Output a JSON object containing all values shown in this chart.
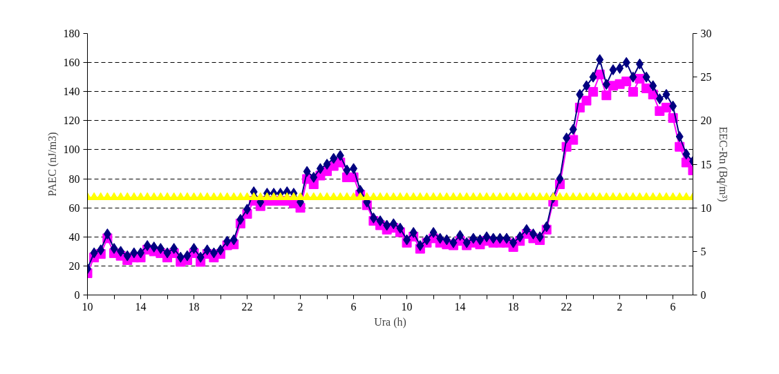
{
  "chart_data": {
    "type": "line",
    "xlabel": "Ura (h)",
    "ylabel": "PAEC (nJ/m3)",
    "y2label": "EEC-Rn (Bq/m³)",
    "categories": [
      "10",
      null,
      null,
      null,
      null,
      null,
      null,
      null,
      "14",
      null,
      null,
      null,
      null,
      null,
      null,
      null,
      "18",
      null,
      null,
      null,
      null,
      null,
      null,
      null,
      "22",
      null,
      null,
      null,
      null,
      null,
      null,
      null,
      "2",
      null,
      null,
      null,
      null,
      null,
      null,
      null,
      "6",
      null,
      null,
      null,
      null,
      null,
      null,
      null,
      "10",
      null,
      null,
      null,
      null,
      null,
      null,
      null,
      "14",
      null,
      null,
      null,
      null,
      null,
      null,
      null,
      "18",
      null,
      null,
      null,
      null,
      null,
      null,
      null,
      "22",
      null,
      null,
      null,
      null,
      null,
      null,
      null,
      "2",
      null,
      null,
      null,
      null,
      null,
      null,
      null,
      "6",
      null,
      null,
      null
    ],
    "ylim": [
      0,
      180
    ],
    "yticks": [
      0,
      20,
      40,
      60,
      80,
      100,
      120,
      140,
      160,
      180
    ],
    "y2lim": [
      0,
      30
    ],
    "y2ticks": [
      0,
      5,
      10,
      15,
      20,
      25,
      30
    ],
    "grid": "y",
    "line_style": "solid",
    "series": [
      {
        "color": "#ff00ff",
        "axis": "y2",
        "marker": "square",
        "values": [
          2.5,
          4.3,
          4.7,
          6.5,
          4.8,
          4.5,
          4.0,
          4.3,
          4.3,
          5.2,
          5.0,
          4.8,
          4.3,
          4.8,
          3.8,
          4.0,
          4.8,
          3.8,
          4.7,
          4.3,
          4.7,
          5.7,
          5.8,
          8.2,
          9.3,
          10.8,
          10.2,
          10.8,
          10.8,
          10.8,
          10.8,
          10.5,
          10.0,
          13.3,
          12.7,
          13.7,
          14.2,
          14.8,
          15.2,
          13.5,
          13.5,
          11.5,
          10.3,
          8.5,
          8.0,
          7.5,
          7.7,
          7.2,
          6.0,
          6.7,
          5.3,
          6.0,
          6.5,
          6.0,
          5.8,
          5.7,
          6.2,
          5.7,
          6.0,
          5.8,
          6.2,
          6.0,
          6.0,
          6.0,
          5.5,
          6.2,
          7.0,
          6.5,
          6.3,
          7.5,
          10.7,
          12.7,
          17.0,
          17.8,
          21.5,
          22.3,
          23.3,
          25.3,
          22.9,
          24.0,
          24.2,
          24.5,
          23.3,
          24.8,
          23.7,
          23.0,
          21.1,
          21.5,
          20.3,
          17.0,
          15.2,
          14.3
        ]
      },
      {
        "color": "#000080",
        "marker": "diamond",
        "values": [
          18,
          29,
          31,
          42,
          32,
          30,
          27,
          29,
          29,
          34,
          33,
          32,
          29,
          32,
          26,
          27,
          32,
          26,
          31,
          29,
          31,
          37,
          38,
          52,
          59,
          71,
          64,
          70,
          70,
          70,
          71,
          70,
          64,
          85,
          81,
          87,
          90,
          94,
          96,
          86,
          87,
          72,
          64,
          53,
          51,
          48,
          49,
          46,
          38,
          43,
          34,
          38,
          43,
          39,
          38,
          36,
          41,
          36,
          39,
          38,
          40,
          39,
          39,
          39,
          36,
          40,
          45,
          42,
          40,
          47,
          67,
          80,
          108,
          114,
          138,
          144,
          150,
          162,
          145,
          155,
          156,
          160,
          150,
          159,
          150,
          144,
          135,
          138,
          130,
          109,
          97,
          92
        ]
      },
      {
        "color": "#ffff00",
        "axis": "y2",
        "marker": "triangle",
        "values": [
          11.2,
          11.2,
          11.2,
          11.2,
          11.2,
          11.2,
          11.2,
          11.2,
          11.2,
          11.2,
          11.2,
          11.2,
          11.2,
          11.2,
          11.2,
          11.2,
          11.2,
          11.2,
          11.2,
          11.2,
          11.2,
          11.2,
          11.2,
          11.2,
          11.2,
          11.2,
          11.2,
          11.2,
          11.2,
          11.2,
          11.2,
          11.2,
          11.2,
          11.2,
          11.2,
          11.2,
          11.2,
          11.2,
          11.2,
          11.2,
          11.2,
          11.2,
          11.2,
          11.2,
          11.2,
          11.2,
          11.2,
          11.2,
          11.2,
          11.2,
          11.2,
          11.2,
          11.2,
          11.2,
          11.2,
          11.2,
          11.2,
          11.2,
          11.2,
          11.2,
          11.2,
          11.2,
          11.2,
          11.2,
          11.2,
          11.2,
          11.2,
          11.2,
          11.2,
          11.2,
          11.2,
          11.2,
          11.2,
          11.2,
          11.2,
          11.2,
          11.2,
          11.2,
          11.2,
          11.2,
          11.2,
          11.2,
          11.2,
          11.2,
          11.2,
          11.2,
          11.2,
          11.2,
          11.2,
          11.2,
          11.2,
          11.2
        ]
      }
    ]
  }
}
